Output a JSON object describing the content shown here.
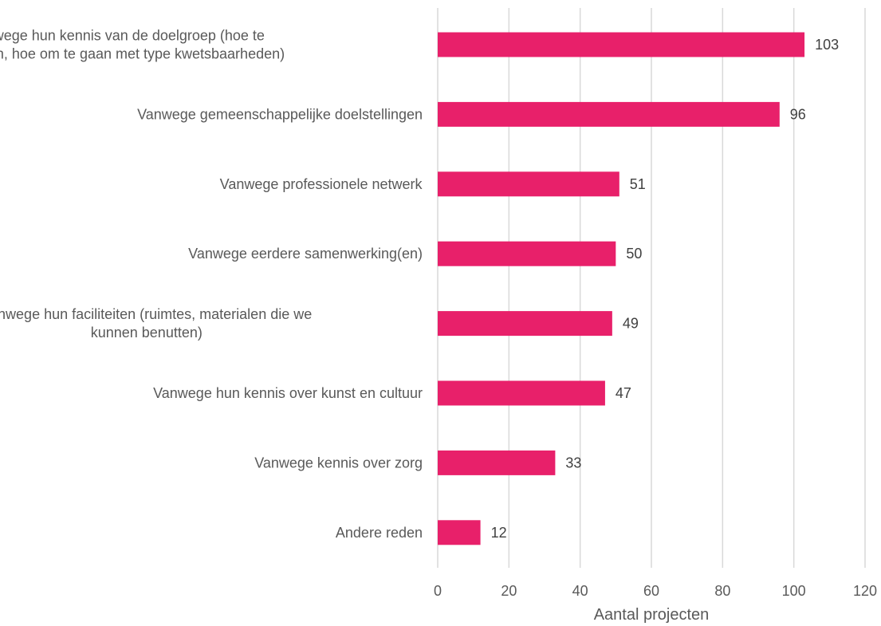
{
  "chart_data": {
    "type": "bar",
    "orientation": "horizontal",
    "categories": [
      [
        "Vanwege hun kennis van de doelgroep (hoe te",
        "bereiken, hoe om te gaan met type kwetsbaarheden)"
      ],
      [
        "Vanwege gemeenschappelijke doelstellingen"
      ],
      [
        "Vanwege professionele netwerk"
      ],
      [
        "Vanwege eerdere samenwerking(en)"
      ],
      [
        "Vanwege hun faciliteiten (ruimtes, materialen die we",
        "kunnen benutten)"
      ],
      [
        "Vanwege hun kennis over kunst en cultuur"
      ],
      [
        "Vanwege kennis over zorg"
      ],
      [
        "Andere reden"
      ]
    ],
    "values": [
      103,
      96,
      51,
      50,
      49,
      47,
      33,
      12
    ],
    "xlabel": "Aantal projecten",
    "ylabel": "",
    "xlim": [
      0,
      120
    ],
    "xticks": [
      0,
      20,
      40,
      60,
      80,
      100,
      120
    ],
    "grid": "vertical",
    "bar_color": "#e8206a",
    "legend": "none",
    "data_labels": true
  }
}
